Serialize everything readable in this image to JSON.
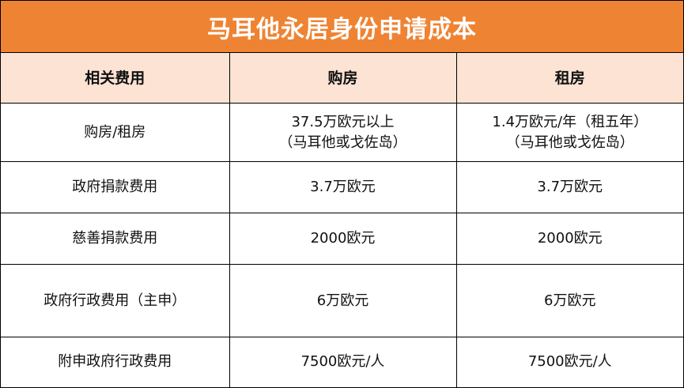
{
  "title": "马耳他永居身份申请成本",
  "colors": {
    "header_bg": "#ee8433",
    "subheader_bg": "#fce3d3"
  },
  "columns": [
    "相关费用",
    "购房",
    "租房"
  ],
  "rows": [
    {
      "label": "购房/租房",
      "buy": [
        "37.5万欧元以上",
        "（马耳他或戈佐岛）"
      ],
      "rent": [
        "1.4万欧元/年（租五年）",
        "（马耳他或戈佐岛）"
      ]
    },
    {
      "label": "政府捐款费用",
      "buy": [
        "3.7万欧元"
      ],
      "rent": [
        "3.7万欧元"
      ]
    },
    {
      "label": "慈善捐款费用",
      "buy": [
        "2000欧元"
      ],
      "rent": [
        "2000欧元"
      ]
    },
    {
      "label": "政府行政费用（主申）",
      "buy": [
        "6万欧元"
      ],
      "rent": [
        "6万欧元"
      ]
    },
    {
      "label": "附申政府行政费用",
      "buy": [
        "7500欧元/人"
      ],
      "rent": [
        "7500欧元/人"
      ]
    }
  ]
}
